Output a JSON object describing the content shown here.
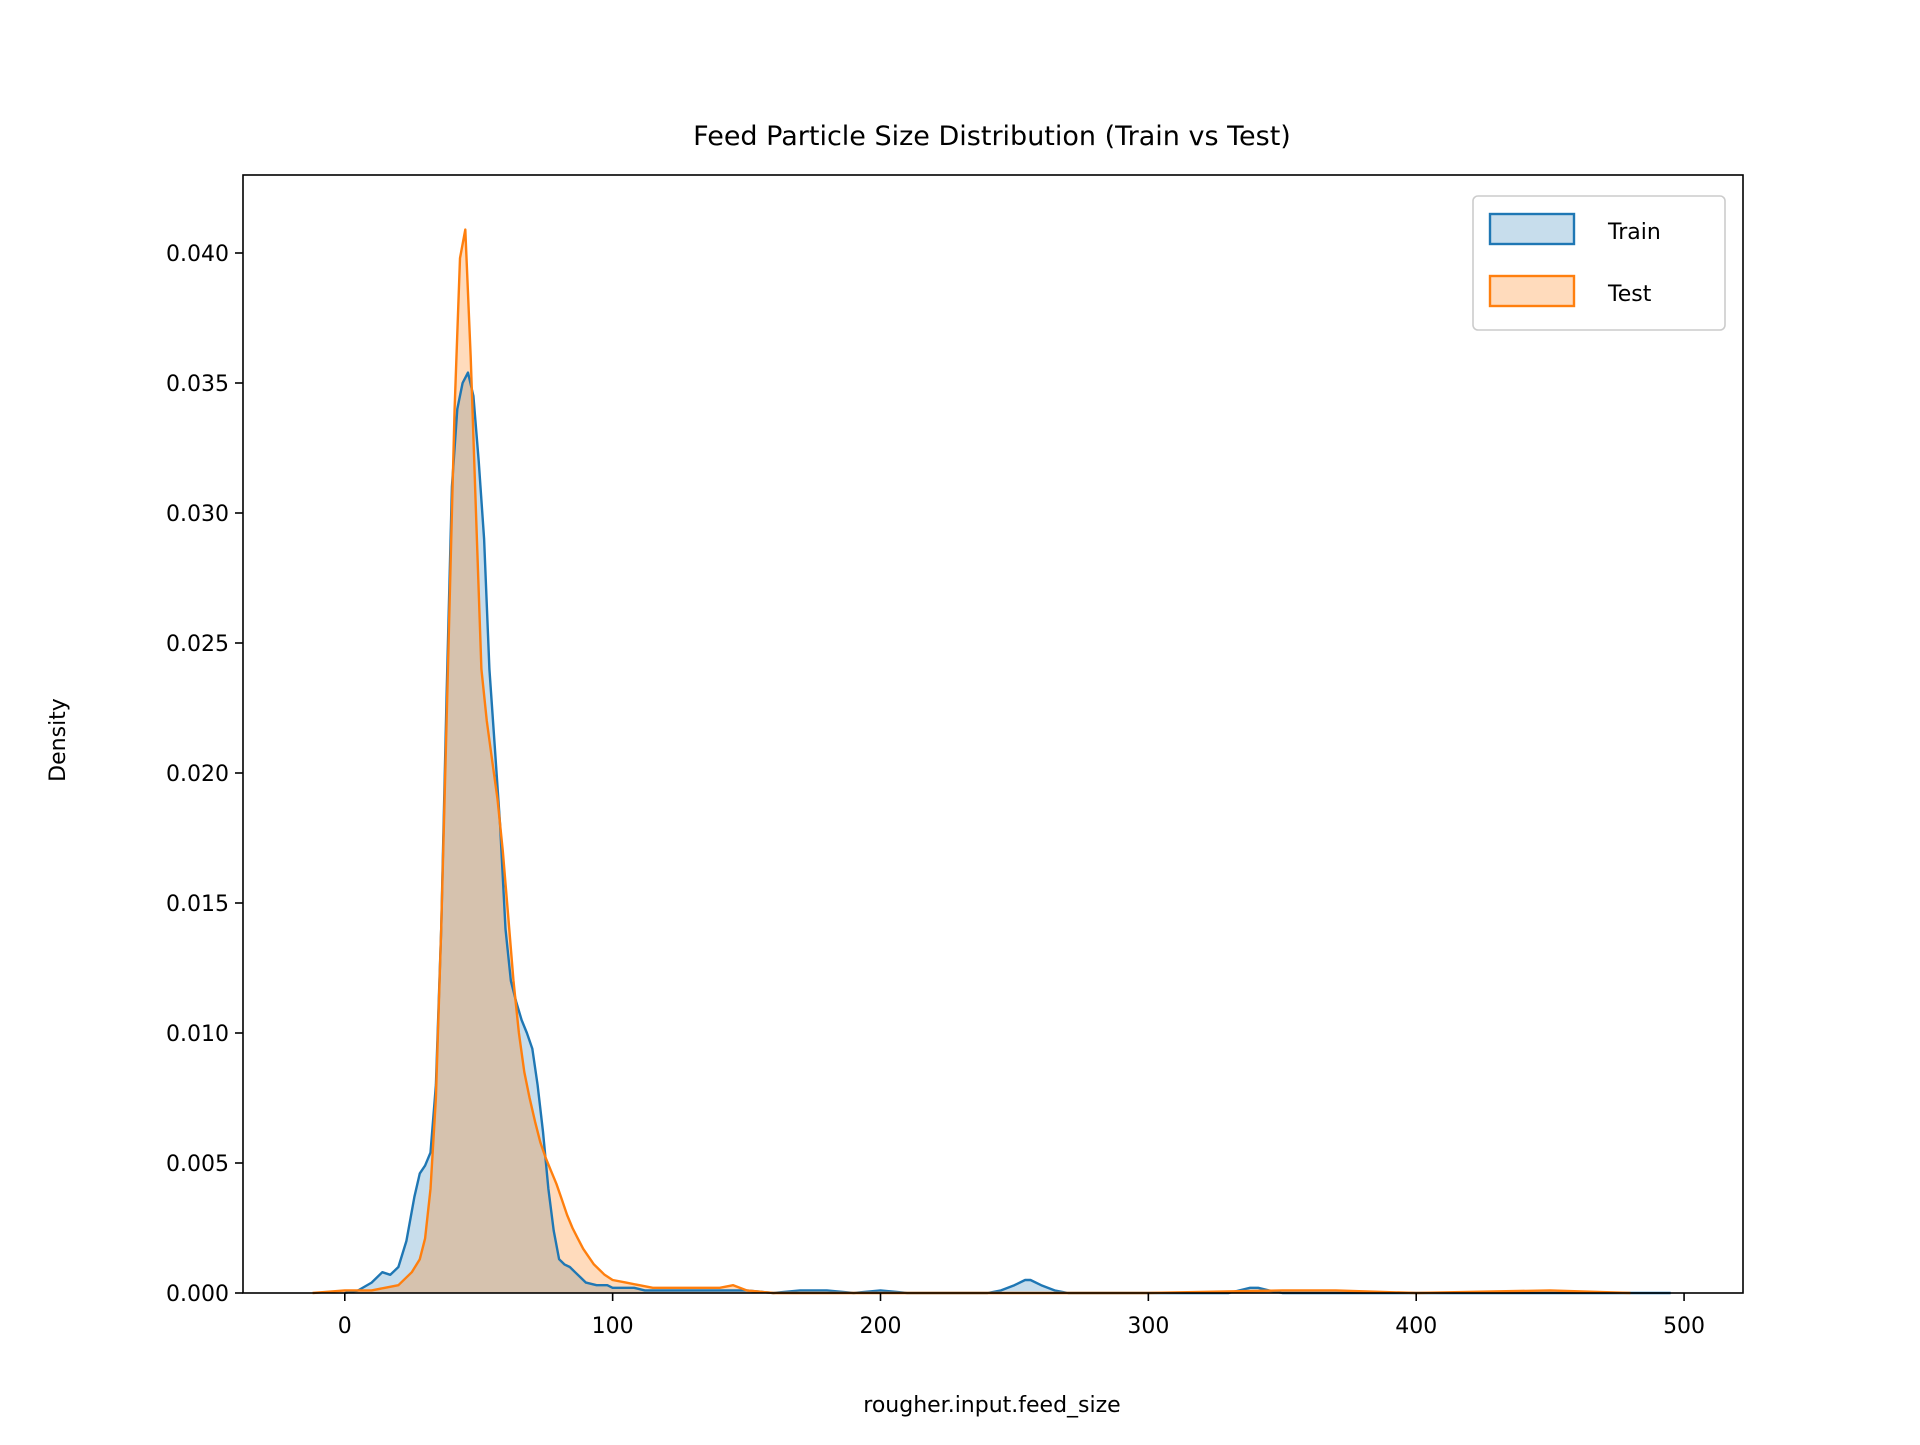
{
  "chart_data": {
    "type": "area",
    "title": "Feed Particle Size Distribution (Train vs Test)",
    "xlabel": "rougher.input.feed_size",
    "ylabel": "Density",
    "xlim": [
      -38,
      522
    ],
    "ylim": [
      0,
      0.043
    ],
    "x_ticks": [
      0,
      100,
      200,
      300,
      400,
      500
    ],
    "y_ticks": [
      0.0,
      0.005,
      0.01,
      0.015,
      0.02,
      0.025,
      0.03,
      0.035,
      0.04
    ],
    "x_tick_labels": [
      "0",
      "100",
      "200",
      "300",
      "400",
      "500"
    ],
    "y_tick_labels": [
      "0.000",
      "0.005",
      "0.010",
      "0.015",
      "0.020",
      "0.025",
      "0.030",
      "0.035",
      "0.040"
    ],
    "grid": false,
    "legend_position": "top-right",
    "series": [
      {
        "name": "Train",
        "color": "#1f77b4",
        "fill": "#1f77b4",
        "x": [
          0,
          5,
          10,
          14,
          17,
          20,
          23,
          26,
          28,
          30,
          32,
          34,
          36,
          38,
          40,
          42,
          44,
          46,
          48,
          50,
          52,
          54,
          56,
          58,
          60,
          62,
          64,
          66,
          68,
          70,
          72,
          74,
          76,
          78,
          80,
          82,
          84,
          86,
          88,
          90,
          94,
          98,
          100,
          104,
          108,
          112,
          116,
          120,
          130,
          140,
          150,
          160,
          170,
          180,
          190,
          200,
          210,
          220,
          230,
          240,
          245,
          250,
          254,
          256,
          260,
          265,
          270,
          280,
          300,
          320,
          330,
          338,
          341,
          345,
          350,
          380,
          420,
          460,
          495
        ],
        "y": [
          0.0,
          0.0001,
          0.0004,
          0.0008,
          0.0007,
          0.001,
          0.002,
          0.0037,
          0.0046,
          0.0049,
          0.0054,
          0.008,
          0.014,
          0.023,
          0.031,
          0.034,
          0.035,
          0.0354,
          0.0345,
          0.032,
          0.029,
          0.024,
          0.021,
          0.018,
          0.014,
          0.012,
          0.0112,
          0.0105,
          0.01,
          0.0094,
          0.008,
          0.0062,
          0.004,
          0.0024,
          0.0013,
          0.0011,
          0.001,
          0.0008,
          0.0006,
          0.0004,
          0.0003,
          0.0003,
          0.0002,
          0.0002,
          0.0002,
          0.0001,
          0.0001,
          0.0001,
          0.0001,
          0.0001,
          0.0001,
          0.0,
          0.0001,
          0.0001,
          0.0,
          0.0001,
          0.0,
          0.0,
          0.0,
          0.0,
          0.0001,
          0.0003,
          0.0005,
          0.0005,
          0.0003,
          0.0001,
          0.0,
          0.0,
          0.0,
          0.0,
          0.0,
          0.0002,
          0.0002,
          0.0001,
          0.0,
          0.0,
          0.0,
          0.0,
          0.0
        ]
      },
      {
        "name": "Test",
        "color": "#ff7f0e",
        "fill": "#ff7f0e",
        "x": [
          -12,
          0,
          10,
          15,
          20,
          25,
          28,
          30,
          32,
          34,
          36,
          37,
          38,
          40,
          41,
          43,
          45,
          47,
          49,
          51,
          53,
          55,
          57,
          59,
          61,
          63,
          65,
          67,
          69,
          71,
          73,
          75,
          77,
          79,
          81,
          83,
          85,
          87,
          89,
          91,
          93,
          95,
          97,
          100,
          105,
          110,
          115,
          120,
          130,
          140,
          145,
          150,
          160,
          170,
          200,
          250,
          300,
          350,
          370,
          400,
          450,
          480
        ],
        "y": [
          0.0,
          0.0001,
          0.0001,
          0.0002,
          0.0003,
          0.0008,
          0.0013,
          0.0021,
          0.004,
          0.0075,
          0.014,
          0.018,
          0.022,
          0.03,
          0.034,
          0.0398,
          0.0409,
          0.036,
          0.03,
          0.024,
          0.022,
          0.0205,
          0.019,
          0.017,
          0.0145,
          0.012,
          0.01,
          0.0085,
          0.0075,
          0.0066,
          0.0058,
          0.0052,
          0.0047,
          0.0042,
          0.0036,
          0.003,
          0.0025,
          0.0021,
          0.0017,
          0.0014,
          0.0011,
          0.0009,
          0.0007,
          0.0005,
          0.0004,
          0.0003,
          0.0002,
          0.0002,
          0.0002,
          0.0002,
          0.0003,
          0.0001,
          0.0,
          0.0,
          0.0,
          0.0,
          0.0,
          0.0001,
          0.0001,
          0.0,
          0.0001,
          0.0
        ]
      }
    ]
  }
}
